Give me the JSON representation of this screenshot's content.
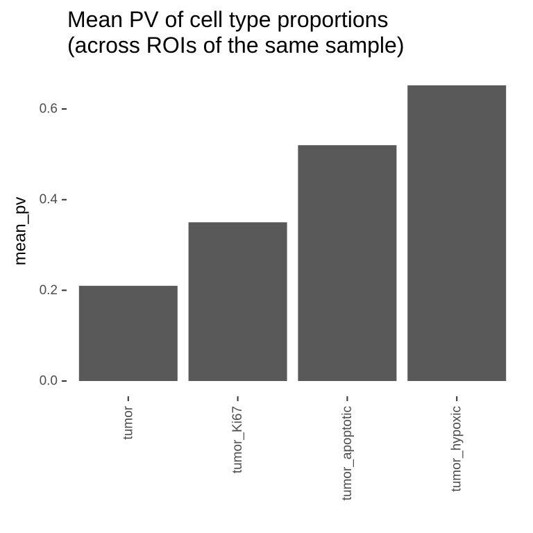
{
  "chart_data": {
    "type": "bar",
    "title_lines": [
      "Mean PV of cell type proportions",
      "(across ROIs of the same sample)"
    ],
    "xlabel": "",
    "ylabel": "mean_pv",
    "categories": [
      "tumor",
      "tumor_Ki67",
      "tumor_apoptotic",
      "tumor_hypoxic"
    ],
    "values": [
      0.21,
      0.35,
      0.52,
      0.652
    ],
    "ylim": [
      0,
      0.652
    ],
    "yticks": [
      0.0,
      0.2,
      0.4,
      0.6
    ],
    "ytick_labels": [
      "0.0",
      "0.2",
      "0.4",
      "0.6"
    ],
    "bar_color": "#595959",
    "tick_color": "#333333",
    "grid": false,
    "legend": "none"
  }
}
